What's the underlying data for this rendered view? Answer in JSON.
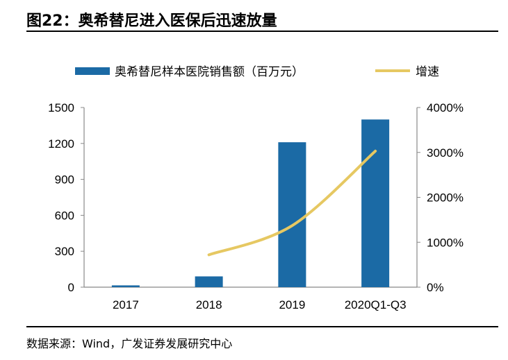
{
  "title": "图22：奥希替尼进入医保后迅速放量",
  "source": "数据来源：Wind，广发证券发展研究中心",
  "chart_data": {
    "type": "bar+line",
    "categories": [
      "2017",
      "2018",
      "2019",
      "2020Q1-Q3"
    ],
    "series": [
      {
        "name": "奥希替尼样本医院销售额（百万元）",
        "type": "bar",
        "axis": "left",
        "color": "#1b6aa5",
        "values": [
          15,
          90,
          1210,
          1400
        ]
      },
      {
        "name": "增速",
        "type": "line",
        "axis": "right",
        "color": "#e6c862",
        "values": [
          null,
          720,
          1370,
          3030
        ]
      }
    ],
    "left_axis": {
      "ylim": [
        0,
        1500
      ],
      "ticks": [
        "0",
        "300",
        "600",
        "900",
        "1200",
        "1500"
      ]
    },
    "right_axis": {
      "ylim": [
        0,
        4000
      ],
      "ticks": [
        "0%",
        "1000%",
        "2000%",
        "3000%",
        "4000%"
      ]
    },
    "grid": false,
    "legend": "top"
  }
}
